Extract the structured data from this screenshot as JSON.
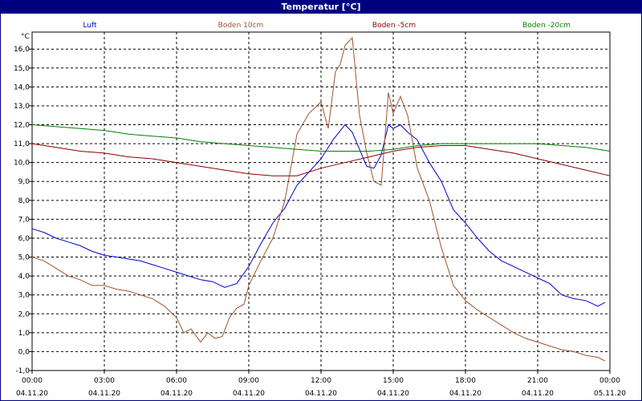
{
  "window": {
    "title": "Temperatur [°C]"
  },
  "chart_data": {
    "type": "line",
    "title": "Temperatur [°C]",
    "ylabel": "°C",
    "ylim": [
      -1.0,
      16.9
    ],
    "yticks": [
      "16,0",
      "15,0",
      "14,0",
      "13,0",
      "12,0",
      "11,0",
      "10,0",
      "9,0",
      "8,0",
      "7,0",
      "6,0",
      "5,0",
      "4,0",
      "3,0",
      "2,0",
      "1,0",
      "0,0",
      "-1,0"
    ],
    "ytick_values": [
      16,
      15,
      14,
      13,
      12,
      11,
      10,
      9,
      8,
      7,
      6,
      5,
      4,
      3,
      2,
      1,
      0,
      -1
    ],
    "xlim": [
      0,
      24
    ],
    "xticks": [
      {
        "hour": 0,
        "time": "00:00",
        "date": "04.11.20"
      },
      {
        "hour": 3,
        "time": "03:00",
        "date": "04.11.20"
      },
      {
        "hour": 6,
        "time": "06:00",
        "date": "04.11.20"
      },
      {
        "hour": 9,
        "time": "09:00",
        "date": "04.11.20"
      },
      {
        "hour": 12,
        "time": "12:00",
        "date": "04.11.20"
      },
      {
        "hour": 15,
        "time": "15:00",
        "date": "04.11.20"
      },
      {
        "hour": 18,
        "time": "18:00",
        "date": "04.11.20"
      },
      {
        "hour": 21,
        "time": "21:00",
        "date": "04.11.20"
      },
      {
        "hour": 24,
        "time": "00:00",
        "date": "05.11.20"
      }
    ],
    "grid": true,
    "legend_position": "top",
    "series": [
      {
        "name": "Luft",
        "color": "#0000cc",
        "x": [
          0,
          0.5,
          1,
          1.5,
          2,
          2.5,
          3,
          3.5,
          4,
          4.5,
          5,
          5.5,
          6,
          6.5,
          7,
          7.5,
          8,
          8.5,
          9,
          9.5,
          10,
          10.5,
          11,
          11.5,
          12,
          12.5,
          13,
          13.3,
          13.6,
          13.9,
          14.2,
          14.5,
          14.8,
          15,
          15.3,
          15.6,
          16,
          16.5,
          17,
          17.5,
          18,
          18.5,
          19,
          19.5,
          20,
          20.5,
          21,
          21.5,
          22,
          22.5,
          23,
          23.5,
          23.8
        ],
        "y": [
          6.5,
          6.3,
          6.0,
          5.8,
          5.6,
          5.3,
          5.1,
          5.0,
          4.9,
          4.8,
          4.6,
          4.4,
          4.2,
          4.0,
          3.8,
          3.7,
          3.4,
          3.6,
          4.5,
          5.7,
          6.8,
          7.6,
          8.8,
          9.5,
          10.2,
          11.2,
          12.0,
          11.6,
          10.7,
          9.8,
          9.7,
          10.4,
          12.0,
          11.8,
          12.0,
          11.6,
          11.2,
          10.0,
          9.0,
          7.5,
          6.8,
          6.0,
          5.3,
          4.8,
          4.5,
          4.2,
          3.9,
          3.6,
          3.0,
          2.8,
          2.7,
          2.4,
          2.6
        ]
      },
      {
        "name": "Boden 10cm",
        "color": "#a0522d",
        "x": [
          0,
          0.5,
          1,
          1.5,
          2,
          2.5,
          3,
          3.5,
          4,
          4.5,
          5,
          5.5,
          6,
          6.3,
          6.6,
          7,
          7.3,
          7.6,
          7.9,
          8.2,
          8.5,
          8.8,
          9,
          9.5,
          10,
          10.5,
          11,
          11.5,
          12,
          12.3,
          12.6,
          12.8,
          13.0,
          13.3,
          13.6,
          13.9,
          14.2,
          14.5,
          14.8,
          15,
          15.3,
          15.6,
          16,
          16.5,
          17,
          17.5,
          18,
          18.5,
          19,
          19.5,
          20,
          20.5,
          21,
          21.5,
          22,
          22.5,
          23,
          23.5,
          23.8
        ],
        "y": [
          5.0,
          4.8,
          4.4,
          4.0,
          3.8,
          3.5,
          3.5,
          3.3,
          3.2,
          3.0,
          2.8,
          2.4,
          1.8,
          1.0,
          1.2,
          0.5,
          1.0,
          0.7,
          0.8,
          1.8,
          2.3,
          2.5,
          3.5,
          4.8,
          6.0,
          8.0,
          11.5,
          12.6,
          13.2,
          11.8,
          14.8,
          15.2,
          16.2,
          16.6,
          12.5,
          10.5,
          9.0,
          8.8,
          13.7,
          12.6,
          13.5,
          12.5,
          9.7,
          8.0,
          5.5,
          3.5,
          2.7,
          2.2,
          1.8,
          1.4,
          1.0,
          0.7,
          0.5,
          0.3,
          0.1,
          0.0,
          -0.2,
          -0.3,
          -0.5
        ]
      },
      {
        "name": "Boden -5cm",
        "color": "#8b0000",
        "x": [
          0,
          1,
          2,
          3,
          4,
          5,
          6,
          7,
          8,
          9,
          10,
          11,
          12,
          13,
          14,
          15,
          16,
          17,
          18,
          19,
          20,
          21,
          22,
          23,
          24
        ],
        "y": [
          11.0,
          10.8,
          10.6,
          10.5,
          10.3,
          10.2,
          10.0,
          9.8,
          9.6,
          9.4,
          9.3,
          9.3,
          9.7,
          10.0,
          10.3,
          10.6,
          10.8,
          10.9,
          10.9,
          10.7,
          10.5,
          10.2,
          9.9,
          9.6,
          9.3
        ]
      },
      {
        "name": "Boden -20cm",
        "color": "#008000",
        "x": [
          0,
          1,
          2,
          3,
          4,
          5,
          6,
          7,
          8,
          9,
          10,
          11,
          12,
          13,
          14,
          15,
          16,
          17,
          18,
          19,
          20,
          21,
          22,
          23,
          24
        ],
        "y": [
          12.0,
          11.9,
          11.8,
          11.7,
          11.5,
          11.4,
          11.3,
          11.1,
          11.0,
          10.9,
          10.8,
          10.7,
          10.6,
          10.6,
          10.6,
          10.7,
          10.9,
          11.0,
          11.0,
          11.0,
          11.0,
          11.0,
          10.9,
          10.8,
          10.6
        ]
      }
    ]
  }
}
